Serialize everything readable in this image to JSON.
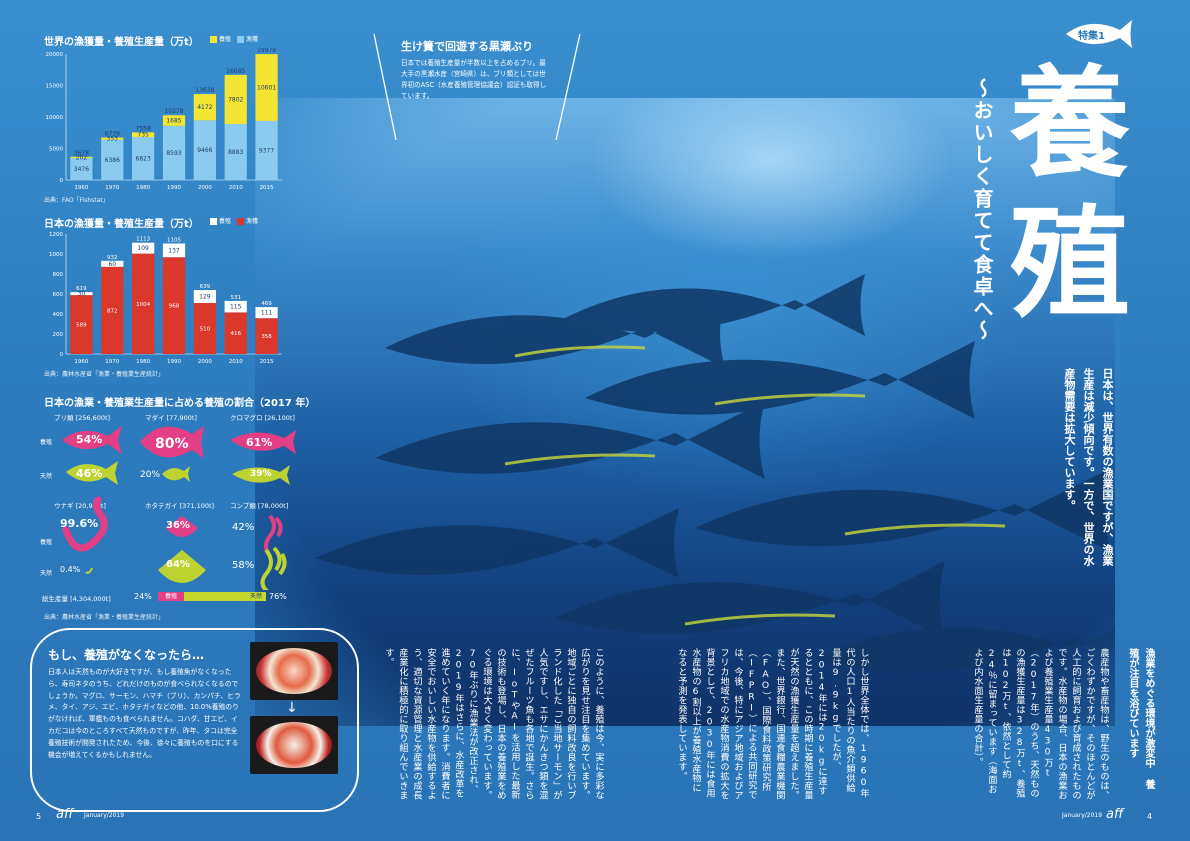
{
  "charts": {
    "world": {
      "title": "世界の漁獲量・養殖生産量（万t）",
      "legend": [
        "養殖",
        "漁獲"
      ],
      "source": "出典：FAO「Fishstat」",
      "yticks": [
        "20000",
        "15000",
        "10000",
        "5000",
        "0"
      ]
    },
    "japan": {
      "title": "日本の漁獲量・養殖生産量（万t）",
      "legend": [
        "養殖",
        "漁獲"
      ],
      "source": "出典：農林水産省「漁業・養殖業生産統計」",
      "yticks": [
        "1200",
        "1000",
        "800",
        "600",
        "400",
        "200",
        "0"
      ]
    },
    "ratio": {
      "title": "日本の漁業・養殖業生産量に占める養殖の割合（2017 年）",
      "source": "出典：農林水産省「漁業・養殖業生産統計」",
      "row_label_farm": "養殖",
      "row_label_wild": "天然",
      "species": [
        {
          "name": "ブリ類 [256,600t]",
          "farm": "54%",
          "wild": "46%"
        },
        {
          "name": "マダイ [77,900t]",
          "farm": "80%",
          "wild": "20%"
        },
        {
          "name": "クロマグロ [26,100t]",
          "farm": "61%",
          "wild": "39%"
        },
        {
          "name": "ウナギ [20,933t]",
          "farm": "99.6%",
          "wild": "0.4%"
        },
        {
          "name": "ホタテガイ [371,100t]",
          "farm": "36%",
          "wild": "64%"
        },
        {
          "name": "コンブ類 [78,000t]",
          "farm": "42%",
          "wild": "58%"
        }
      ],
      "total_label": "総生産量 [4,304,000t]",
      "total_farm_pct": "24%",
      "total_farm_label": "養殖",
      "total_wild_label": "天然",
      "total_wild_pct": "76%"
    }
  },
  "chart_data": [
    {
      "type": "bar",
      "title": "世界の漁獲量・養殖生産量（万t）",
      "categories": [
        "1960",
        "1970",
        "1980",
        "1990",
        "2000",
        "2010",
        "2015"
      ],
      "series": [
        {
          "name": "漁獲",
          "values": [
            3476,
            6386,
            6823,
            8593,
            9466,
            8883,
            9377
          ]
        },
        {
          "name": "養殖",
          "values": [
            202,
            353,
            735,
            1685,
            4172,
            7802,
            10601
          ]
        }
      ],
      "totals": [
        3678,
        6739,
        7558,
        10278,
        13638,
        16685,
        19978
      ],
      "ylim": [
        0,
        20000
      ],
      "colors": {
        "漁獲": "#8ccbf0",
        "養殖": "#f4e532"
      }
    },
    {
      "type": "bar",
      "title": "日本の漁獲量・養殖生産量（万t）",
      "categories": [
        "1960",
        "1970",
        "1980",
        "1990",
        "2000",
        "2010",
        "2015"
      ],
      "series": [
        {
          "name": "漁獲",
          "values": [
            589,
            872,
            1004,
            968,
            510,
            416,
            358
          ]
        },
        {
          "name": "養殖",
          "values": [
            30,
            60,
            109,
            137,
            129,
            115,
            111
          ]
        }
      ],
      "totals": [
        619,
        932,
        1113,
        1105,
        639,
        531,
        469
      ],
      "ylim": [
        0,
        1200
      ],
      "colors": {
        "漁獲": "#d9382b",
        "養殖": "#ffffff"
      }
    }
  ],
  "feature": {
    "badge": "特集1",
    "title_1": "養",
    "title_2": "殖",
    "subtitle": "〜おいしく育てて食卓へ〜",
    "lead": "日本は、世界有数の漁業国ですが、漁業生産は減少傾向です。一方で、世界の水産物需要は拡大しています。"
  },
  "sidebar_box": {
    "title": "生け簀で回遊する黒瀬ぶり",
    "body": "日本では養殖生産量が半数以上を占めるブリ。最大手の黒瀬水産（宮崎県）は、ブリ類としては世界初のASC（水産養殖管理協議会）認証も取得しています。"
  },
  "note": {
    "title": "もし、養殖がなくなったら…",
    "body": "日本人は天然ものが大好きですが、もし養殖魚がなくなったら、寿司ネタのうち、どれだけのものが食べられなくなるのでしょうか。マグロ、サーモン、ハマチ（ブリ）、カンパチ、ヒラメ、タイ、アジ、エビ、ホタテガイなどの他、10.0%養殖のりがなければ、軍艦ものも食べられません。コハダ、甘エビ、イカだコは今のところすべて天然ものですが、昨年、タコは完全養殖技術が開発されたため、今後、徐々に養殖ものを口にする機会が増えてくるかもしれません。"
  },
  "article": {
    "heading": "漁業をめぐる環境が激変中 養殖が注目を浴びています",
    "col1": "農産物や畜産物は、野生のものは、ごくわずかですが、そのほとんどが人工的に飼育および育成されたものです。水産物の場合、日本の漁業および養殖業生産量430万t（2017年）のうち、天然ものの漁獲生産量は328万t、養殖は102万t、依然として約24％に留まっています（海面および内水面生産量の合計）。",
    "col2": "しかし世界全体では、1960年代の人口1人当たりの魚介類供給量は9.9kgでしたが、2014年には20kgに達するとともに、この時期に養殖生産量が天然の漁獲生産量を超えました。また、世界銀行、国連食糧農業機関（FAO）、国際食料政策研究所（IFPRI）による共同研究では、今後、特にアジア地域およびアフリカ地域での水産物消費の拡大を背景として、2030年には食用水産物の6割以上が養殖水産物になると予測を発表しています。",
    "col3": "このように、養殖は今、実に多彩な広がりを見せ注目を集めています。地域ごとに独自の飼料改良を行いブランド化した「ご当地サーモン」が人気ですし、エサにかんきつ類を混ぜたフルーツ魚も各地で誕生。さらに、IoTやAIを活用した最新の技術も登場し、日本の養殖業をめぐる環境は大きく変わっています。70年ぶりに漁業法が改正され、2019年はさらに、水産改革を進めていく年になります。消費者に安全でおいしい水産物を供給するよう、適切な資源管理と水産業の成長産業化に積極的に取り組んでいきます。"
  },
  "footer": {
    "left_page": "5",
    "left_brand": "aff",
    "left_issue": "January/2019",
    "right_issue": "January/2019",
    "right_brand": "aff",
    "right_page": "4"
  }
}
